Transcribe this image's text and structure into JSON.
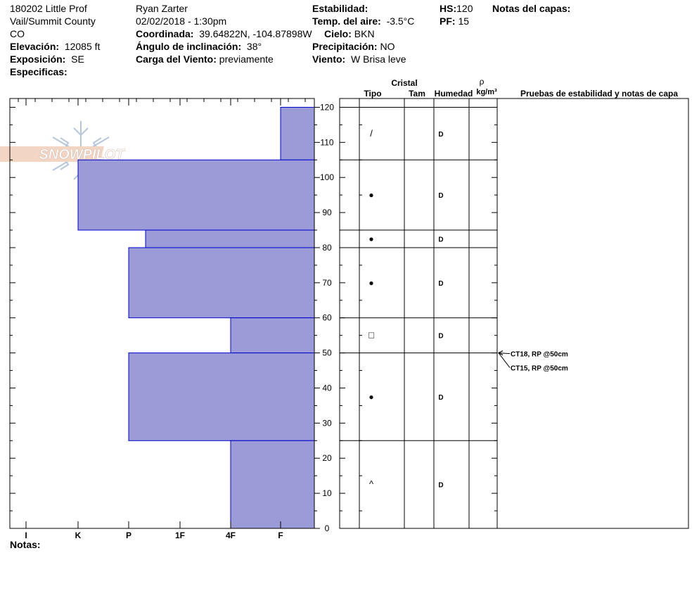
{
  "site": {
    "name": "180202 Little Prof",
    "location": "Vail/Summit County",
    "state": "CO",
    "elevation_label": "Elevación:",
    "elevation": "12085 ft",
    "aspect_label": "Exposición:",
    "aspect": "SE",
    "specifics_label": "Especificas:",
    "specifics": ""
  },
  "observer": {
    "name": "Ryan Zarter",
    "datetime": "02/02/2018 - 1:30pm",
    "coord_label": "Coordinada:",
    "coord": "39.64822N, -104.87898W",
    "slope_label": "Ángulo de inclinación:",
    "slope": "38°",
    "wind_loading_label": "Carga del Viento:",
    "wind_loading": "previamente"
  },
  "conditions": {
    "stability_label": "Estabilidad:",
    "stability": "",
    "air_temp_label": "Temp. del aire:",
    "air_temp": "-3.5°C",
    "sky_label": "Cielo:",
    "sky": "BKN",
    "precip_label": "Precipitación:",
    "precip": "NO",
    "wind_label": "Viento:",
    "wind": "W Brisa leve"
  },
  "snowpack": {
    "hs_label": "HS:",
    "hs": "120",
    "pf_label": "PF:",
    "pf": "15",
    "layer_notes_label": "Notas del capas:"
  },
  "notes_label": "Notas:",
  "logo_text": "SNOWPILOT",
  "columns": {
    "crystal": "Cristal",
    "type": "Tipo",
    "size": "Tam",
    "moisture": "Humedad",
    "density_symbol": "ρ",
    "density_unit": "kg/m³",
    "tests": "Pruebas de estabilidad y notas de capa"
  },
  "chart_data": {
    "type": "bar",
    "orientation": "horizontal",
    "x_categories": [
      "I",
      "K",
      "P",
      "1F",
      "4F",
      "F"
    ],
    "y_ticks": [
      0,
      10,
      20,
      30,
      40,
      50,
      60,
      70,
      80,
      90,
      100,
      110,
      120
    ],
    "ylim": [
      0,
      120
    ],
    "fill_color": "#9b9bd7",
    "edge_color": "#0000cc",
    "layers": [
      {
        "bottom": 105,
        "top": 120,
        "hardness": "F",
        "crystal": "/",
        "moisture": "D"
      },
      {
        "bottom": 85,
        "top": 105,
        "hardness": "K",
        "crystal": "●",
        "moisture": "D"
      },
      {
        "bottom": 80,
        "top": 85,
        "hardness": "P+",
        "crystal": "●",
        "moisture": "D"
      },
      {
        "bottom": 60,
        "top": 80,
        "hardness": "P",
        "crystal": "●",
        "moisture": "D"
      },
      {
        "bottom": 50,
        "top": 60,
        "hardness": "4F",
        "crystal": "□",
        "moisture": "D"
      },
      {
        "bottom": 25,
        "top": 50,
        "hardness": "P",
        "crystal": "●",
        "moisture": "D"
      },
      {
        "bottom": 0,
        "top": 25,
        "hardness": "4F",
        "crystal": "^",
        "moisture": "D"
      }
    ],
    "tests": [
      {
        "label": "CT18, RP @50cm",
        "depth": 50
      },
      {
        "label": "CT15, RP @50cm",
        "depth": 50
      }
    ]
  }
}
